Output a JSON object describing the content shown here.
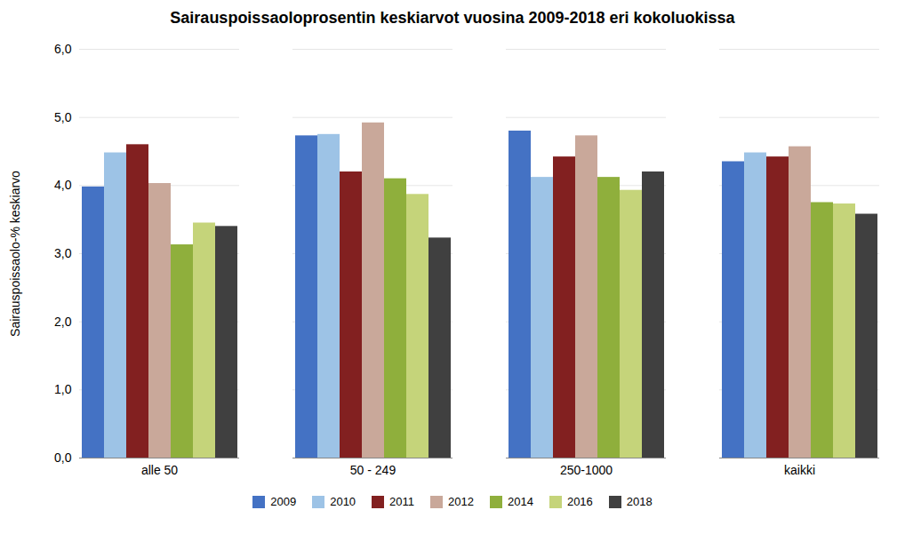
{
  "chart_data": {
    "type": "bar",
    "title": "Sairauspoissaoloprosentin keskiarvot vuosina 2009-2018 eri kokoluokissa",
    "ylabel": "Sairauspoissaolo-% keskiarvo",
    "categories": [
      "alle 50",
      "50 - 249",
      "250-1000",
      "kaikki"
    ],
    "series": [
      {
        "name": "2009",
        "color": "#4472C4",
        "values": [
          3.98,
          4.73,
          4.8,
          4.35
        ]
      },
      {
        "name": "2010",
        "color": "#9DC3E6",
        "values": [
          4.48,
          4.75,
          4.12,
          4.48
        ]
      },
      {
        "name": "2011",
        "color": "#822020",
        "values": [
          4.6,
          4.2,
          4.42,
          4.42
        ]
      },
      {
        "name": "2012",
        "color": "#C9A89A",
        "values": [
          4.03,
          4.92,
          4.73,
          4.57
        ]
      },
      {
        "name": "2014",
        "color": "#8FAF3C",
        "values": [
          3.13,
          4.1,
          4.12,
          3.75
        ]
      },
      {
        "name": "2016",
        "color": "#C5D47A",
        "values": [
          3.45,
          3.87,
          3.93,
          3.73
        ]
      },
      {
        "name": "2018",
        "color": "#404040",
        "values": [
          3.4,
          3.23,
          4.2,
          3.58
        ]
      }
    ],
    "ylim": [
      0,
      6.0
    ],
    "yticks": [
      {
        "value": 0.0,
        "label": "0,0"
      },
      {
        "value": 1.0,
        "label": "1,0"
      },
      {
        "value": 2.0,
        "label": "2,0"
      },
      {
        "value": 3.0,
        "label": "3,0"
      },
      {
        "value": 4.0,
        "label": "4,0"
      },
      {
        "value": 5.0,
        "label": "5,0"
      },
      {
        "value": 6.0,
        "label": "6,0"
      }
    ],
    "grid": true,
    "legend": "bottom"
  }
}
